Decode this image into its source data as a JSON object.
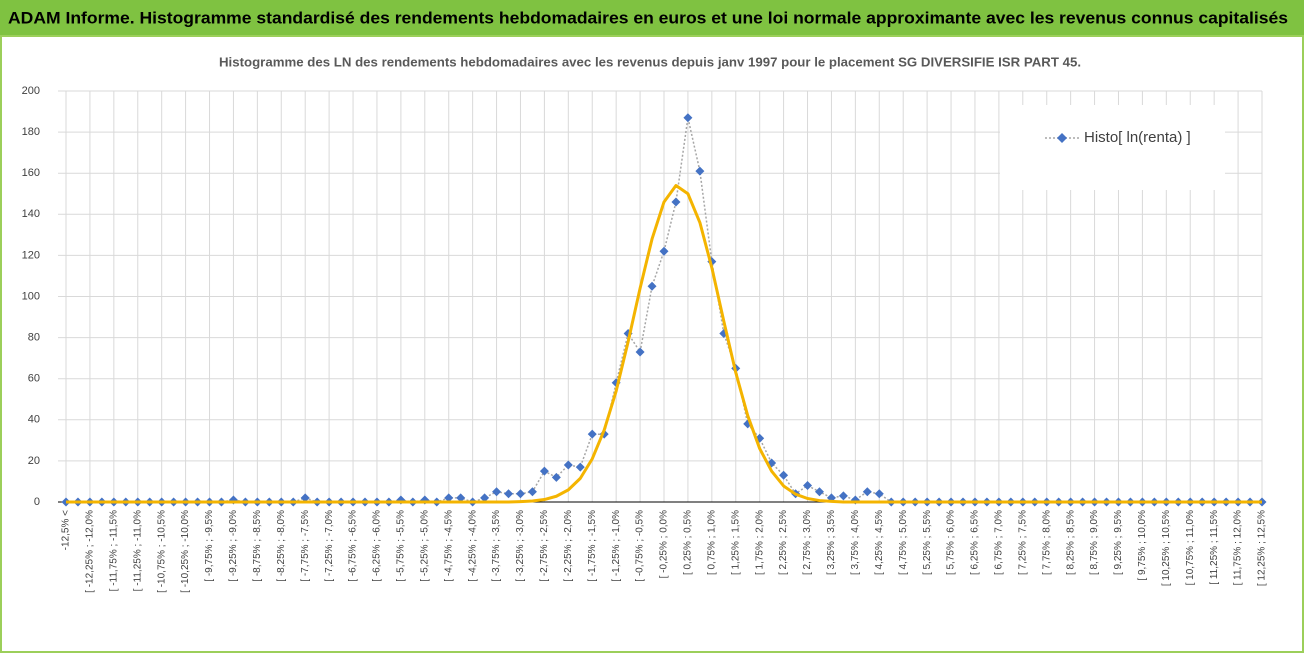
{
  "chart_data": {
    "type": "line",
    "title": "ADAM Informe. Histogramme standardisé des rendements hebdomadaires en euros et une loi normale approximante avec les revenus connus capitalisés",
    "subtitle": "Histogramme des LN des rendements hebdomadaires avec les revenus depuis janv 1997 pour le placement SG DIVERSIFIE ISR PART 45.",
    "categories": [
      "-12,5% <",
      null,
      "[ -12,25% ; -12,0%",
      null,
      "[ -11,75% ; -11,5%",
      null,
      "[ -11,25% ; -11,0%",
      null,
      "[ -10,75% ; -10,5%",
      null,
      "[ -10,25% ; -10,0%",
      null,
      "[ -9,75% ; -9,5%",
      null,
      "[ -9,25% ; -9,0%",
      null,
      "[ -8,75% ; -8,5%",
      null,
      "[ -8,25% ; -8,0%",
      null,
      "[ -7,75% ; -7,5%",
      null,
      "[ -7,25% ; -7,0%",
      null,
      "[ -6,75% ; -6,5%",
      null,
      "[ -6,25% ; -6,0%",
      null,
      "[ -5,75% ; -5,5%",
      null,
      "[ -5,25% ; -5,0%",
      null,
      "[ -4,75% ; -4,5%",
      null,
      "[ -4,25% ; -4,0%",
      null,
      "[ -3,75% ; -3,5%",
      null,
      "[ -3,25% ; -3,0%",
      null,
      "[ -2,75% ; -2,5%",
      null,
      "[ -2,25% ; -2,0%",
      null,
      "[ -1,75% ; -1,5%",
      null,
      "[ -1,25% ; -1,0%",
      null,
      "[ -0,75% ; -0,5%",
      null,
      "[ -0,25% ; 0,0%",
      null,
      "[ 0,25% ; 0,5%",
      null,
      "[ 0,75% ; 1,0%",
      null,
      "[ 1,25% ; 1,5%",
      null,
      "[ 1,75% ; 2,0%",
      null,
      "[ 2,25% ; 2,5%",
      null,
      "[ 2,75% ; 3,0%",
      null,
      "[ 3,25% ; 3,5%",
      null,
      "[ 3,75% ; 4,0%",
      null,
      "[ 4,25% ; 4,5%",
      null,
      "[ 4,75% ; 5,0%",
      null,
      "[ 5,25% ; 5,5%",
      null,
      "[ 5,75% ; 6,0%",
      null,
      "[ 6,25% ; 6,5%",
      null,
      "[ 6,75% ; 7,0%",
      null,
      "[ 7,25% ; 7,5%",
      null,
      "[ 7,75% ; 8,0%",
      null,
      "[ 8,25% ; 8,5%",
      null,
      "[ 8,75% ; 9,0%",
      null,
      "[ 9,25% ; 9,5%",
      null,
      "[ 9,75% ; 10,0%",
      null,
      "[ 10,25% ; 10,5%",
      null,
      "[ 10,75% ; 11,0%",
      null,
      "[ 11,25% ; 11,5%",
      null,
      "[ 11,75% ; 12,0%",
      null,
      "[ 12,25% ; 12,5%"
    ],
    "series": [
      {
        "name": "Histo[ ln(renta) ]",
        "color": "#4472c4",
        "values": [
          0,
          0,
          0,
          0,
          0,
          0,
          0,
          0,
          0,
          0,
          0,
          0,
          0,
          0,
          1,
          0,
          0,
          0,
          0,
          0,
          2,
          0,
          0,
          0,
          0,
          0,
          0,
          0,
          1,
          0,
          1,
          0,
          2,
          2,
          0,
          2,
          5,
          4,
          4,
          5,
          15,
          12,
          18,
          17,
          33,
          33,
          58,
          82,
          73,
          105,
          122,
          146,
          187,
          161,
          117,
          82,
          65,
          38,
          31,
          19,
          13,
          4,
          8,
          5,
          2,
          3,
          1,
          5,
          4,
          0,
          0,
          0,
          0,
          0,
          0,
          0,
          0,
          0,
          0,
          0,
          0,
          0,
          0,
          0,
          0,
          0,
          0,
          0,
          0,
          0,
          0,
          0,
          0,
          0,
          0,
          0,
          0,
          0,
          0,
          0,
          0
        ]
      },
      {
        "color": "#f4b400",
        "values": [
          0,
          0,
          0,
          0,
          0,
          0,
          0,
          0,
          0,
          0,
          0,
          0,
          0,
          0,
          0,
          0,
          0,
          0,
          0,
          0,
          0,
          0,
          0,
          0,
          0,
          0,
          0,
          0,
          0,
          0,
          0,
          0,
          0,
          0,
          0,
          0,
          0,
          0,
          0.2,
          0.5,
          1.2,
          2.8,
          5.9,
          11.5,
          21,
          35,
          54,
          78,
          104,
          128,
          146,
          154,
          150,
          136,
          114,
          88,
          63,
          42,
          26,
          15,
          7.8,
          3.8,
          1.7,
          0.7,
          0.3,
          0,
          0,
          0,
          0,
          0,
          0,
          0,
          0,
          0,
          0,
          0,
          0,
          0,
          0,
          0,
          0,
          0,
          0,
          0,
          0,
          0,
          0,
          0,
          0,
          0,
          0,
          0,
          0,
          0,
          0,
          0,
          0,
          0,
          0,
          0,
          0
        ]
      }
    ],
    "ylim": [
      0,
      200
    ],
    "yticks": [
      0,
      20,
      40,
      60,
      80,
      100,
      120,
      140,
      160,
      180,
      200
    ],
    "grid": true,
    "legend": "upper right"
  }
}
